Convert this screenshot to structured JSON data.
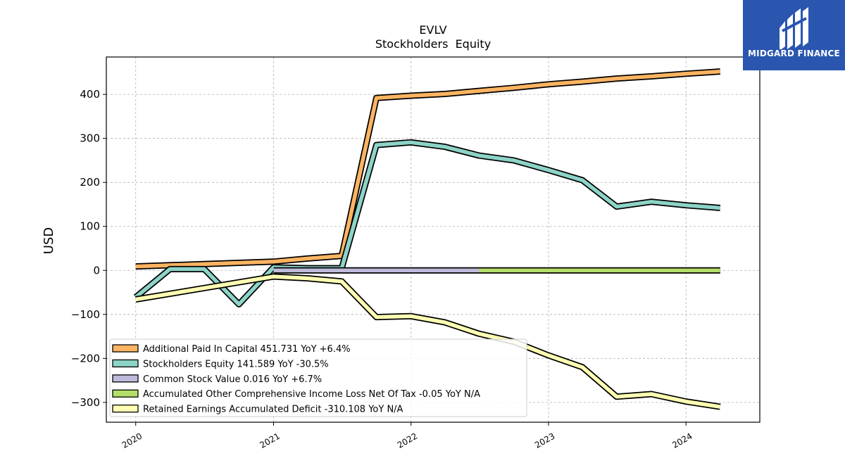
{
  "logo": {
    "text": "MIDGARD FINANCE"
  },
  "chart_data": {
    "type": "line",
    "title": "EVLV",
    "subtitle": "Stockholders  Equity",
    "ylabel": "USD",
    "xlabel": "",
    "xlim": [
      "2019-10-15",
      "2024-07-15"
    ],
    "ylim": [
      -345,
      485
    ],
    "yticks": [
      -300,
      -200,
      -100,
      0,
      100,
      200,
      300,
      400
    ],
    "ytick_labels": [
      "−300",
      "−200",
      "−100",
      "0",
      "100",
      "200",
      "300",
      "400"
    ],
    "xticks": [
      "2020-01-01",
      "2021-01-01",
      "2022-01-01",
      "2023-01-01",
      "2024-01-01"
    ],
    "xtick_labels": [
      "2020",
      "2021",
      "2022",
      "2023",
      "2024"
    ],
    "grid": true,
    "legend_position": "lower-left",
    "series": [
      {
        "name": "Additional Paid In Capital",
        "legend": "Additional Paid In Capital  451.731 YoY +6.4%",
        "color": "#fdb462",
        "x": [
          "2020-01-01",
          "2021-01-01",
          "2021-04-01",
          "2021-07-01",
          "2021-10-01",
          "2022-01-01",
          "2022-04-01",
          "2022-07-01",
          "2022-10-01",
          "2023-01-01",
          "2023-04-01",
          "2023-07-01",
          "2023-10-01",
          "2024-01-01",
          "2024-04-01"
        ],
        "values": [
          9,
          20,
          27,
          33,
          392,
          397,
          401,
          408,
          415,
          423,
          429,
          436,
          441,
          447,
          452
        ]
      },
      {
        "name": "Stockholders Equity",
        "legend": "Stockholders Equity  141.589 YoY -30.5%",
        "color": "#8dd3c7",
        "x": [
          "2020-01-01",
          "2020-04-01",
          "2020-07-01",
          "2020-10-01",
          "2021-01-01",
          "2021-04-01",
          "2021-07-01",
          "2021-10-01",
          "2022-01-01",
          "2022-04-01",
          "2022-07-01",
          "2022-10-01",
          "2023-01-01",
          "2023-04-01",
          "2023-07-01",
          "2023-10-01",
          "2024-01-01",
          "2024-04-01"
        ],
        "values": [
          -61,
          3,
          3,
          -77,
          7,
          5,
          5,
          285,
          291,
          281,
          261,
          250,
          228,
          205,
          145,
          156,
          148,
          142
        ]
      },
      {
        "name": "Common Stock Value",
        "legend": "Common Stock Value  0.016 YoY +6.7%",
        "color": "#bebada",
        "x": [
          "2021-01-01",
          "2022-07-01"
        ],
        "values": [
          0.015,
          0.016
        ]
      },
      {
        "name": "Accumulated Other Comprehensive Income Loss Net Of Tax",
        "legend": "Accumulated Other Comprehensive Income Loss Net Of Tax  -0.05 YoY N/A",
        "color": "#b3de69",
        "x": [
          "2022-07-01",
          "2024-04-01"
        ],
        "values": [
          0,
          -0.05
        ]
      },
      {
        "name": "Retained Earnings Accumulated Deficit",
        "legend": "Retained Earnings Accumulated Deficit  -310.108 YoY N/A",
        "color": "#ffffb3",
        "x": [
          "2020-01-01",
          "2021-01-01",
          "2021-04-01",
          "2021-07-01",
          "2021-10-01",
          "2022-01-01",
          "2022-04-01",
          "2022-07-01",
          "2022-10-01",
          "2023-01-01",
          "2023-04-01",
          "2023-07-01",
          "2023-10-01",
          "2024-01-01",
          "2024-04-01"
        ],
        "values": [
          -66,
          -14,
          -18,
          -25,
          -106,
          -104,
          -118,
          -144,
          -162,
          -193,
          -220,
          -287,
          -281,
          -298,
          -310
        ]
      }
    ]
  }
}
